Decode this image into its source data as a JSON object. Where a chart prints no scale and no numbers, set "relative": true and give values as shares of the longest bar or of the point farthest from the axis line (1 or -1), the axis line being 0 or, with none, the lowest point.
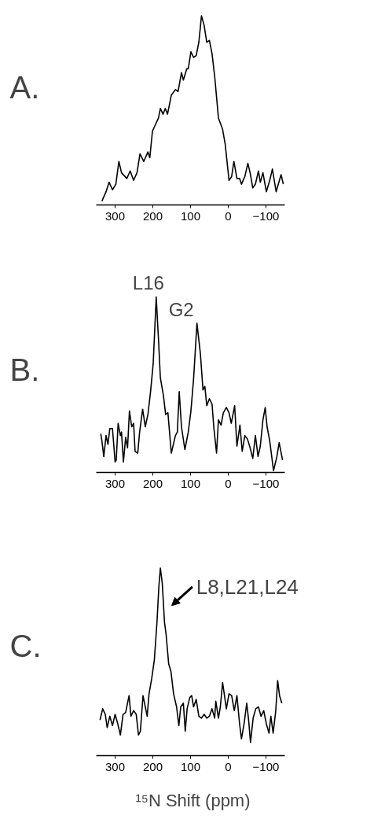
{
  "chart_data": [
    {
      "type": "line",
      "title": "A.",
      "relative": true,
      "xlim": [
        350,
        -150
      ],
      "xticks": [
        300,
        200,
        100,
        0,
        -100
      ],
      "tick_labels": "x",
      "x": [
        335,
        324,
        316,
        307,
        298,
        290,
        283,
        269,
        260,
        251,
        242,
        234,
        224,
        213,
        208,
        201,
        185,
        180,
        173,
        167,
        161,
        151,
        140,
        133,
        124,
        119,
        110,
        106,
        99,
        92,
        85,
        78,
        71,
        64,
        57,
        50,
        43,
        36,
        26,
        15,
        8,
        -2,
        -9,
        -15,
        -23,
        -30,
        -35,
        -44,
        -52,
        -58,
        -65,
        -72,
        -80,
        -85,
        -92,
        -101,
        -110,
        -117,
        -127,
        -140,
        -146
      ],
      "series": [
        {
          "color": "#000000",
          "values": [
            0.02,
            0.07,
            0.12,
            0.08,
            0.11,
            0.23,
            0.17,
            0.14,
            0.18,
            0.13,
            0.17,
            0.27,
            0.23,
            0.28,
            0.25,
            0.39,
            0.46,
            0.51,
            0.48,
            0.51,
            0.48,
            0.58,
            0.61,
            0.6,
            0.7,
            0.66,
            0.72,
            0.72,
            0.81,
            0.78,
            0.79,
            0.86,
            1,
            0.95,
            0.86,
            0.87,
            0.8,
            0.68,
            0.46,
            0.4,
            0.32,
            0.13,
            0.15,
            0.23,
            0.14,
            0.14,
            0.11,
            0.15,
            0.22,
            0.17,
            0.09,
            0.11,
            0.18,
            0.12,
            0.17,
            0.07,
            0.13,
            0.19,
            0.07,
            0.16,
            0.11
          ]
        }
      ]
    },
    {
      "type": "line",
      "title": "B.",
      "relative": true,
      "xlim": [
        350,
        -150
      ],
      "xticks": [
        300,
        200,
        100,
        0,
        -100
      ],
      "tick_labels": "x",
      "x": [
        338,
        335,
        330,
        324,
        319,
        314,
        307,
        300,
        297,
        292,
        286,
        283,
        278,
        272,
        267,
        262,
        256,
        251,
        247,
        240,
        235,
        227,
        220,
        213,
        206,
        199,
        191,
        185,
        180,
        172,
        166,
        160,
        151,
        140,
        135,
        130,
        124,
        115,
        106,
        99,
        92,
        83,
        74,
        67,
        62,
        57,
        50,
        43,
        38,
        31,
        26,
        19,
        13,
        5,
        -2,
        -8,
        -17,
        -23,
        -31,
        -37,
        -44,
        -51,
        -58,
        -65,
        -72,
        -79,
        -85,
        -92,
        -98,
        -103,
        -110,
        -120,
        -129,
        -135,
        -144
      ],
      "series": [
        {
          "color": "#000000",
          "values": [
            0.22,
            0.18,
            0.09,
            0.21,
            0.16,
            0.25,
            0.25,
            0.06,
            0.07,
            0.28,
            0.21,
            0.23,
            0.06,
            0.2,
            0.14,
            0.35,
            0.26,
            0.28,
            0.12,
            0.11,
            0.23,
            0.36,
            0.26,
            0.33,
            0.46,
            0.62,
            1,
            0.76,
            0.54,
            0.44,
            0.33,
            0.34,
            0.11,
            0.21,
            0.23,
            0.46,
            0.26,
            0.13,
            0.23,
            0.35,
            0.53,
            0.85,
            0.68,
            0.47,
            0.49,
            0.38,
            0.42,
            0.39,
            0.25,
            0.11,
            0.3,
            0.27,
            0.34,
            0.37,
            0.34,
            0.28,
            0.38,
            0.15,
            0.27,
            0.12,
            0.21,
            0.19,
            0.14,
            0.08,
            0.21,
            0.09,
            0.15,
            0.3,
            0.37,
            0.26,
            0.18,
            0.01,
            0.09,
            0.17,
            0.07
          ]
        }
      ],
      "annotations": [
        {
          "text": "L16",
          "x": 191,
          "y": 1
        },
        {
          "text": "G2",
          "x": 83,
          "y": 0.85
        }
      ]
    },
    {
      "type": "line",
      "title": "C.",
      "relative": true,
      "xlim": [
        350,
        -150
      ],
      "xticks": [
        300,
        200,
        100,
        0,
        -100
      ],
      "tick_labels": "x",
      "xlabel": "¹⁵N Shift (ppm)",
      "x": [
        340,
        333,
        326,
        321,
        314,
        307,
        300,
        293,
        286,
        279,
        272,
        263,
        258,
        251,
        244,
        238,
        233,
        226,
        220,
        215,
        210,
        203,
        196,
        189,
        184,
        180,
        175,
        169,
        165,
        158,
        152,
        145,
        137,
        131,
        126,
        119,
        114,
        109,
        102,
        97,
        92,
        85,
        78,
        71,
        64,
        57,
        50,
        43,
        36,
        33,
        26,
        21,
        15,
        10,
        5,
        -2,
        -9,
        -16,
        -23,
        -30,
        -35,
        -42,
        -49,
        -54,
        -59,
        -66,
        -73,
        -80,
        -87,
        -94,
        -101,
        -108,
        -113,
        -119,
        -126,
        -131,
        -136,
        -142
      ],
      "series": [
        {
          "color": "#000000",
          "values": [
            0.19,
            0.25,
            0.22,
            0.15,
            0.21,
            0.16,
            0.22,
            0.17,
            0.11,
            0.22,
            0.23,
            0.32,
            0.21,
            0.24,
            0.22,
            0.11,
            0.13,
            0.32,
            0.26,
            0.21,
            0.33,
            0.41,
            0.51,
            0.71,
            0.9,
            1,
            0.92,
            0.71,
            0.65,
            0.49,
            0.45,
            0.33,
            0.26,
            0.16,
            0.26,
            0.28,
            0.13,
            0.25,
            0.31,
            0.32,
            0.26,
            0.3,
            0.21,
            0.2,
            0.22,
            0.2,
            0.21,
            0.25,
            0.2,
            0.29,
            0.2,
            0.26,
            0.39,
            0.32,
            0.25,
            0.33,
            0.32,
            0.24,
            0.32,
            0.17,
            0.09,
            0.17,
            0.28,
            0.19,
            0.07,
            0.2,
            0.25,
            0.26,
            0.21,
            0.24,
            0.17,
            0.12,
            0.21,
            0.12,
            0.24,
            0.4,
            0.32,
            0.28
          ]
        }
      ],
      "annotations": [
        "L8,L21,L24"
      ]
    }
  ]
}
